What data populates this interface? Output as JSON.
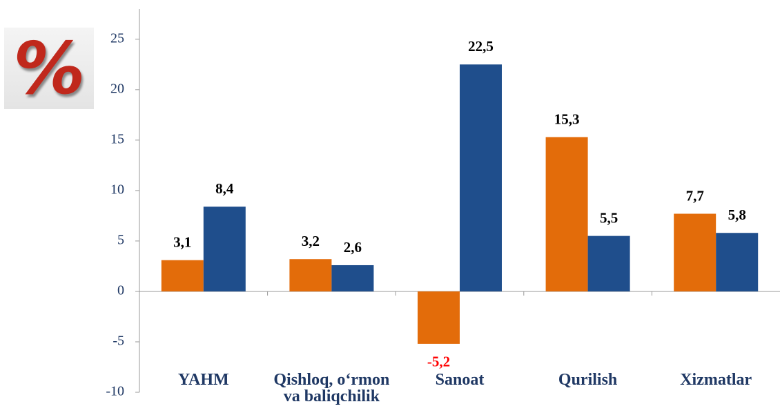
{
  "chart_data": {
    "type": "bar",
    "unit_icon": "%",
    "categories": [
      "YAHM",
      "Qishloq, o‘rmon va baliqchilik",
      "Sanoat",
      "Qurilish",
      "Xizmatlar"
    ],
    "series": [
      {
        "color": "#e36c0a",
        "values": [
          3.1,
          3.2,
          -5.2,
          15.3,
          7.7
        ],
        "value_labels": [
          "3,1",
          "3,2",
          "-5,2",
          "15,3",
          "7,7"
        ]
      },
      {
        "color": "#1f4e8c",
        "values": [
          8.4,
          2.6,
          22.5,
          5.5,
          5.8
        ],
        "value_labels": [
          "8,4",
          "2,6",
          "22,5",
          "5,5",
          "5,8"
        ]
      }
    ],
    "ylim": [
      -10,
      28
    ],
    "yticks": [
      -10,
      -5,
      0,
      5,
      10,
      15,
      20,
      25
    ],
    "grid": false,
    "negative_label_color": "#ff0000"
  }
}
